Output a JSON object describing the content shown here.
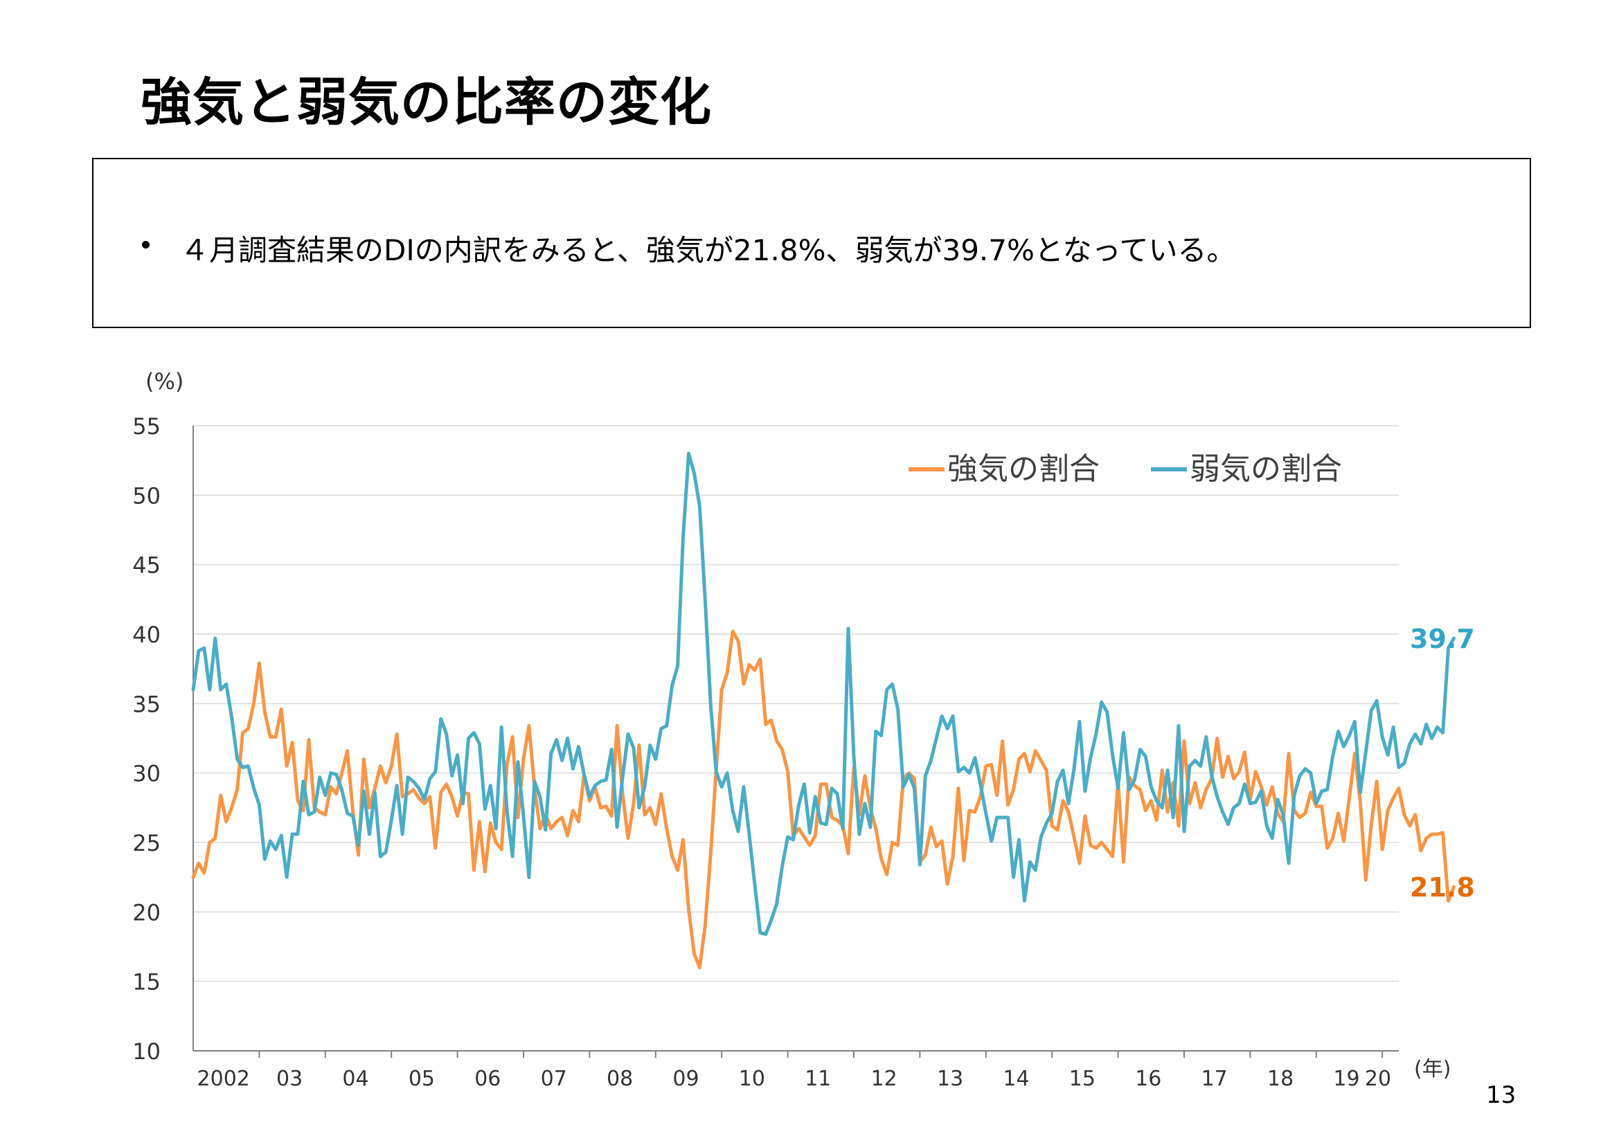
{
  "slide": {
    "title": "強気と弱気の比率の変化",
    "bullet": "４月調査結果のDIの内訳をみると、強気が21.8%、弱気が39.7%となっている。",
    "page_number": "13"
  },
  "chart_data": {
    "type": "line",
    "title": "",
    "ylabel": "(%)",
    "xlabel": "(年)",
    "ylim": [
      10,
      55
    ],
    "yticks": [
      10,
      15,
      20,
      25,
      30,
      35,
      40,
      45,
      50,
      55
    ],
    "grid": true,
    "legend_position": "top-right",
    "x_tick_labels": [
      "2002",
      "03",
      "04",
      "05",
      "06",
      "07",
      "08",
      "09",
      "10",
      "11",
      "12",
      "13",
      "14",
      "15",
      "16",
      "17",
      "18",
      "19",
      "20"
    ],
    "x_start": "2002-01",
    "x_end": "2020-04",
    "series": [
      {
        "name": "強気の割合",
        "color": "#F79646",
        "end_label": "21.8",
        "end_label_color": "#E36C09",
        "values": [
          22.5,
          23.5,
          22.8,
          25.0,
          25.3,
          28.4,
          26.5,
          27.5,
          28.8,
          32.9,
          33.2,
          35.0,
          37.9,
          34.4,
          32.6,
          32.6,
          34.6,
          30.5,
          32.2,
          28.0,
          27.3,
          32.4,
          27.5,
          27.2,
          27.0,
          29.0,
          28.5,
          30.0,
          31.6,
          27.3,
          24.1,
          31.0,
          27.5,
          28.9,
          30.5,
          29.3,
          30.5,
          32.8,
          28.3,
          28.5,
          28.8,
          28.2,
          27.8,
          28.3,
          24.6,
          28.6,
          29.2,
          28.3,
          26.9,
          28.6,
          28.5,
          23.0,
          26.5,
          22.9,
          26.4,
          25.0,
          24.5,
          30.6,
          32.6,
          26.8,
          31.0,
          33.4,
          29.0,
          26.0,
          27.0,
          26.0,
          26.5,
          26.8,
          25.5,
          27.3,
          26.5,
          29.9,
          28.0,
          29.0,
          27.5,
          27.6,
          26.9,
          33.4,
          28.5,
          25.3,
          27.8,
          32.0,
          27.0,
          27.5,
          26.3,
          28.5,
          26.0,
          24.0,
          23.0,
          25.2,
          20.2,
          17.0,
          16.0,
          19.0,
          24.2,
          30.2,
          36.0,
          37.2,
          40.2,
          39.5,
          36.4,
          37.8,
          37.4,
          38.2,
          33.5,
          33.8,
          32.3,
          31.7,
          30.1,
          25.5,
          26.0,
          25.4,
          24.8,
          25.5,
          29.2,
          29.2,
          26.8,
          26.6,
          26.2,
          24.2,
          30.4,
          27.0,
          29.8,
          27.5,
          26.0,
          23.8,
          22.7,
          25.0,
          24.8,
          29.6,
          30.0,
          29.6,
          23.6,
          24.1,
          26.1,
          24.7,
          25.1,
          22.0,
          24.0,
          28.9,
          23.7,
          27.3,
          27.2,
          28.3,
          30.5,
          30.6,
          28.4,
          32.3,
          27.7,
          28.8,
          31.0,
          31.4,
          30.1,
          31.6,
          30.9,
          30.2,
          26.2,
          25.9,
          28.0,
          27.2,
          25.4,
          23.5,
          26.9,
          24.8,
          24.6,
          25.0,
          24.5,
          24.0,
          29.3,
          23.6,
          29.7,
          29.1,
          28.8,
          27.3,
          28.0,
          26.6,
          30.2,
          27.2,
          29.3,
          26.2,
          32.3,
          27.8,
          29.3,
          27.5,
          28.8,
          29.6,
          32.5,
          29.7,
          31.2,
          29.6,
          30.1,
          31.5,
          28.1,
          30.1,
          29.0,
          27.7,
          29.0,
          27.1,
          26.5,
          31.4,
          27.3,
          26.8,
          27.1,
          28.6,
          27.6,
          27.6,
          24.6,
          25.3,
          27.1,
          25.1,
          28.2,
          31.4,
          27.9,
          22.3,
          26.3,
          29.4,
          24.5,
          27.3,
          28.2,
          28.9,
          27.0,
          26.2,
          27.0,
          24.4,
          25.3,
          25.6,
          25.6,
          25.7,
          20.8,
          21.8
        ]
      },
      {
        "name": "弱気の割合",
        "color": "#4BACC6",
        "end_label": "39.7",
        "end_label_color": "#31A5C6",
        "values": [
          36.0,
          38.8,
          39.0,
          36.0,
          39.7,
          36.0,
          36.4,
          34.0,
          31.0,
          30.4,
          30.5,
          28.9,
          27.7,
          23.8,
          25.1,
          24.5,
          25.5,
          22.5,
          25.6,
          25.6,
          29.4,
          27.0,
          27.2,
          29.7,
          28.4,
          30.0,
          29.9,
          28.8,
          27.1,
          26.9,
          24.8,
          28.7,
          25.6,
          28.6,
          24.0,
          24.3,
          26.6,
          29.1,
          25.6,
          29.7,
          29.4,
          28.9,
          28.1,
          29.6,
          30.1,
          33.9,
          32.8,
          29.8,
          31.3,
          27.8,
          32.5,
          32.9,
          32.1,
          27.4,
          29.1,
          26.0,
          33.3,
          27.3,
          24.0,
          30.8,
          26.9,
          22.5,
          29.4,
          28.3,
          25.9,
          31.4,
          32.4,
          30.9,
          32.5,
          30.3,
          31.9,
          29.9,
          28.3,
          29.1,
          29.4,
          29.5,
          31.7,
          26.1,
          29.7,
          32.8,
          31.8,
          27.5,
          29.0,
          32.0,
          31.0,
          33.2,
          33.4,
          36.3,
          37.7,
          47.0,
          53.0,
          51.6,
          49.2,
          42.5,
          34.9,
          30.1,
          29.0,
          30.0,
          27.3,
          25.8,
          29.0,
          25.6,
          22.0,
          18.5,
          18.4,
          19.4,
          20.6,
          23.3,
          25.4,
          25.2,
          27.7,
          29.2,
          25.7,
          28.3,
          26.4,
          26.3,
          28.9,
          28.5,
          26.0,
          40.4,
          31.2,
          25.6,
          27.8,
          26.1,
          33.0,
          32.7,
          36.0,
          36.4,
          34.6,
          29.0,
          29.9,
          28.9,
          23.4,
          29.8,
          30.9,
          32.5,
          34.1,
          33.2,
          34.1,
          30.1,
          30.4,
          30.0,
          31.1,
          29.2,
          27.1,
          25.1,
          26.8,
          26.8,
          26.8,
          22.5,
          25.2,
          20.8,
          23.6,
          23.0,
          25.4,
          26.4,
          27.1,
          29.4,
          30.2,
          27.8,
          30.3,
          33.7,
          28.7,
          31.1,
          32.8,
          35.1,
          34.4,
          31.3,
          28.9,
          32.9,
          28.8,
          29.5,
          31.7,
          31.2,
          29.0,
          28.0,
          27.5,
          30.2,
          26.8,
          33.4,
          25.8,
          30.5,
          30.9,
          30.5,
          32.6,
          29.8,
          28.3,
          27.2,
          26.3,
          27.5,
          27.8,
          29.2,
          27.8,
          27.9,
          28.7,
          26.2,
          25.3,
          28.1,
          27.0,
          23.5,
          28.4,
          29.8,
          30.3,
          30.0,
          27.8,
          28.7,
          28.8,
          31.2,
          33.0,
          31.9,
          32.7,
          33.7,
          28.6,
          31.5,
          34.5,
          35.2,
          32.6,
          31.3,
          33.3,
          30.4,
          30.7,
          32.1,
          32.8,
          32.1,
          33.5,
          32.5,
          33.3,
          32.9,
          39.0,
          39.7
        ]
      }
    ]
  }
}
